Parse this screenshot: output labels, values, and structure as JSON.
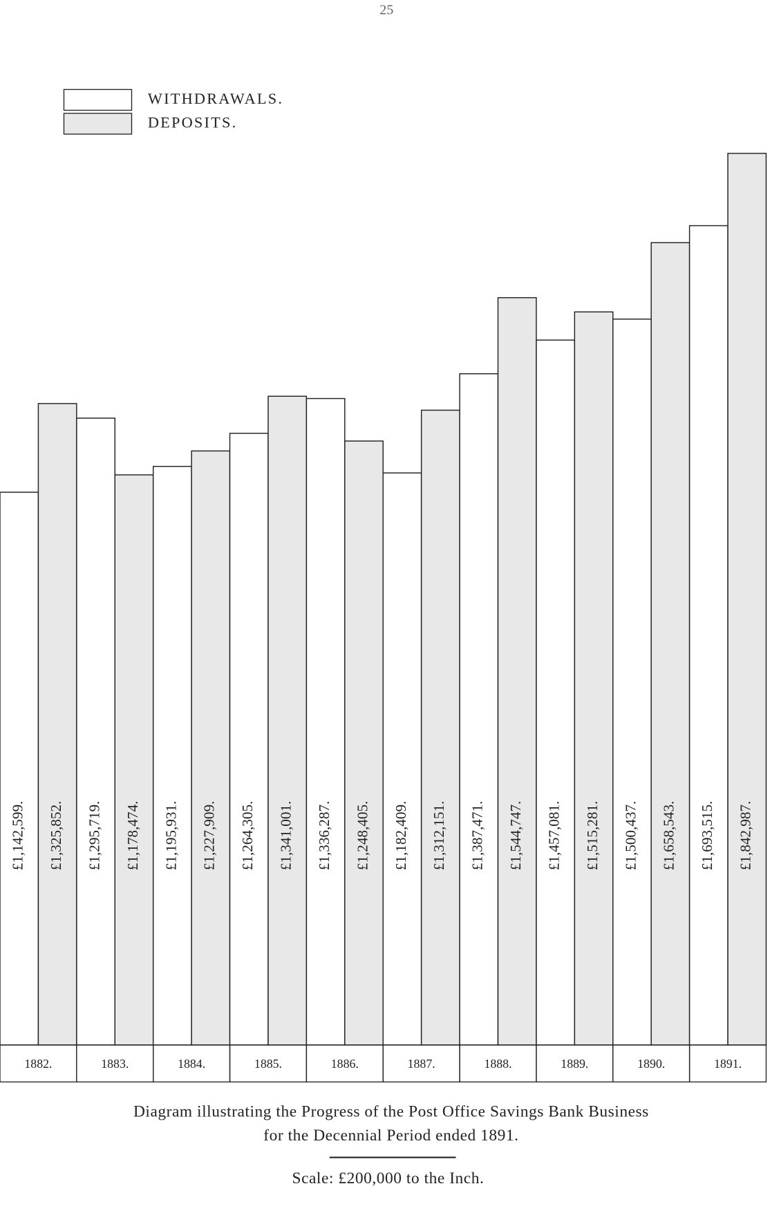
{
  "page_number": "25",
  "chart_data": {
    "type": "bar",
    "title": "Diagram illustrating the Progress of the Post Office Savings Bank Business",
    "subtitle": "for the Decennial Period ended 1891.",
    "annotation": "Scale: £200,000 to the Inch.",
    "categories": [
      "1882.",
      "1883.",
      "1884.",
      "1885.",
      "1886.",
      "1887.",
      "1888.",
      "1889.",
      "1890.",
      "1891."
    ],
    "series": [
      {
        "name": "WITHDRAWALS.",
        "color": "#ffffff",
        "values": [
          1142599,
          1295719,
          1195931,
          1264305,
          1336287,
          1182409,
          1387471,
          1457081,
          1500437,
          1693515
        ],
        "value_labels": [
          "£1,142,599.",
          "£1,295,719.",
          "£1,195,931.",
          "£1,264,305.",
          "£1,336,287.",
          "£1,182,409.",
          "£1,387,471.",
          "£1,457,081.",
          "£1,500,437.",
          "£1,693,515."
        ]
      },
      {
        "name": "DEPOSITS.",
        "color": "#e8e8e8",
        "values": [
          1325852,
          1178474,
          1227909,
          1341001,
          1248405,
          1312151,
          1544747,
          1515281,
          1658543,
          1842987
        ],
        "value_labels": [
          "£1,325,852.",
          "£1,178,474.",
          "£1,227,909.",
          "£1,341,001.",
          "£1,248,405.",
          "£1,312,151.",
          "£1,544,747.",
          "£1,515,281.",
          "£1,658,543.",
          "£1,842,987."
        ]
      }
    ]
  }
}
